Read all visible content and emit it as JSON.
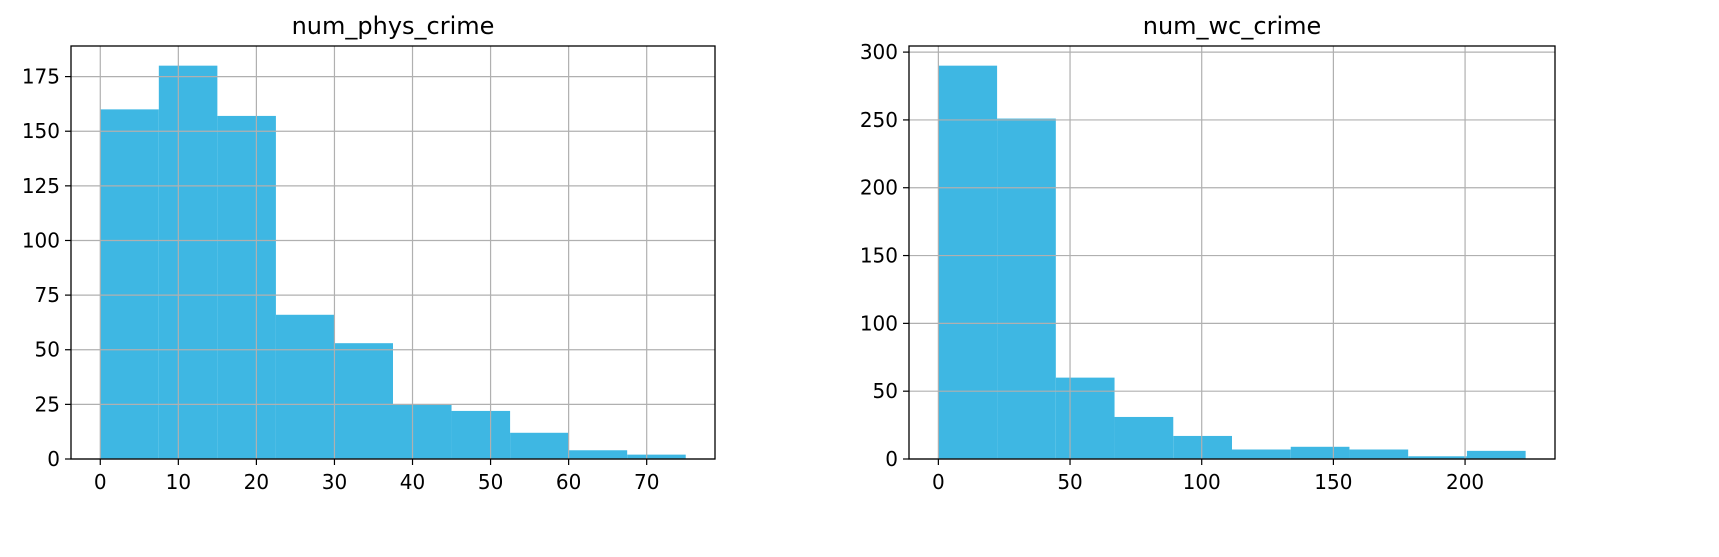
{
  "chart_data": [
    {
      "type": "bar",
      "title": "num_phys_crime",
      "bin_edges": [
        0,
        7.5,
        15,
        22.5,
        30,
        37.5,
        45,
        52.5,
        60,
        67.5,
        75
      ],
      "values": [
        160,
        180,
        157,
        66,
        53,
        25,
        22,
        12,
        4,
        2
      ],
      "xlim": [
        -3.75,
        78.75
      ],
      "ylim": [
        0,
        189
      ],
      "xticks": [
        0,
        10,
        20,
        30,
        40,
        50,
        60,
        70
      ],
      "yticks": [
        0,
        25,
        50,
        75,
        100,
        125,
        150,
        175
      ],
      "grid": true,
      "color": "#3eb7e3"
    },
    {
      "type": "bar",
      "title": "num_wc_crime",
      "bin_edges": [
        0,
        22.3,
        44.6,
        66.9,
        89.2,
        111.5,
        133.8,
        156.1,
        178.4,
        200.7,
        223
      ],
      "values": [
        290,
        251,
        60,
        31,
        17,
        7,
        9,
        7,
        2,
        6
      ],
      "xlim": [
        -11.15,
        234.15
      ],
      "ylim": [
        0,
        304.5
      ],
      "xticks": [
        0,
        50,
        100,
        150,
        200
      ],
      "yticks": [
        0,
        50,
        100,
        150,
        200,
        250,
        300
      ],
      "grid": true,
      "color": "#3eb7e3"
    }
  ]
}
